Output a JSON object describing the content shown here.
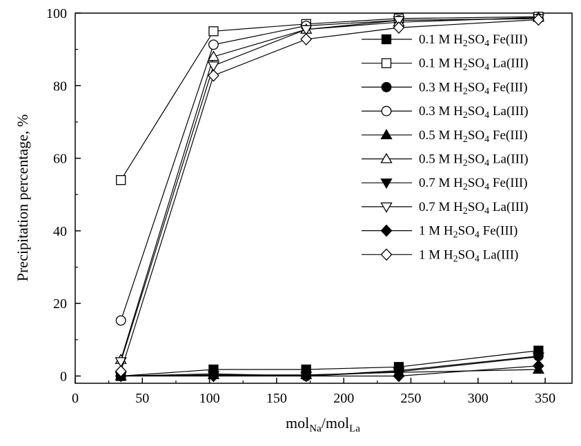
{
  "chart_data": {
    "type": "line",
    "xlabel": {
      "main": "mol",
      "sub1": "Na",
      "mid": "/mol",
      "sub2": "La"
    },
    "ylabel": "Precipitation percentage, %",
    "xlim": [
      0,
      370
    ],
    "ylim": [
      -2,
      100
    ],
    "xticks": [
      0,
      50,
      100,
      150,
      200,
      250,
      300,
      350
    ],
    "yticks": [
      0,
      20,
      40,
      60,
      80,
      100
    ],
    "x": [
      34,
      103,
      172,
      241,
      345
    ],
    "grid": false,
    "legend_position": "right",
    "series": [
      {
        "name": {
          "pre": "0.1 M H",
          "s1": "2",
          "mid": "SO",
          "s2": "4",
          "post": " Fe(III)"
        },
        "marker": "square",
        "filled": true,
        "values": [
          0,
          1.8,
          1.8,
          2.5,
          7
        ]
      },
      {
        "name": {
          "pre": "0.1 M H",
          "s1": "2",
          "mid": "SO",
          "s2": "4",
          "post": " La(III)"
        },
        "marker": "square",
        "filled": false,
        "values": [
          54,
          95,
          97,
          98.5,
          99
        ]
      },
      {
        "name": {
          "pre": "0.3 M H",
          "s1": "2",
          "mid": "SO",
          "s2": "4",
          "post": " Fe(III)"
        },
        "marker": "circle",
        "filled": true,
        "values": [
          0,
          0.6,
          0,
          1.5,
          5.5
        ]
      },
      {
        "name": {
          "pre": "0.3 M H",
          "s1": "2",
          "mid": "SO",
          "s2": "4",
          "post": " La(III)"
        },
        "marker": "circle",
        "filled": false,
        "values": [
          15.3,
          91.3,
          96.5,
          98,
          98.5
        ]
      },
      {
        "name": {
          "pre": "0.5 M H",
          "s1": "2",
          "mid": "SO",
          "s2": "4",
          "post": " Fe(III)"
        },
        "marker": "triangle-up",
        "filled": true,
        "values": [
          0,
          0.3,
          0.3,
          1,
          1.8
        ]
      },
      {
        "name": {
          "pre": "0.5 M H",
          "s1": "2",
          "mid": "SO",
          "s2": "4",
          "post": " La(III)"
        },
        "marker": "triangle-up",
        "filled": false,
        "values": [
          4.5,
          88,
          95.5,
          97.5,
          98.8
        ]
      },
      {
        "name": {
          "pre": "0.7 M H",
          "s1": "2",
          "mid": "SO",
          "s2": "4",
          "post": " Fe(III)"
        },
        "marker": "triangle-down",
        "filled": true,
        "values": [
          0,
          0.2,
          0,
          1.2,
          5.3
        ]
      },
      {
        "name": {
          "pre": "0.7 M H",
          "s1": "2",
          "mid": "SO",
          "s2": "4",
          "post": " La(III)"
        },
        "marker": "triangle-down",
        "filled": false,
        "values": [
          4,
          85.5,
          95.5,
          98,
          98.5
        ]
      },
      {
        "name": {
          "pre": "1 M H",
          "s1": "2",
          "mid": "SO",
          "s2": "4",
          "post": " Fe(III)"
        },
        "marker": "diamond",
        "filled": true,
        "values": [
          0,
          0,
          0,
          0,
          2.8
        ]
      },
      {
        "name": {
          "pre": "1 M H",
          "s1": "2",
          "mid": "SO",
          "s2": "4",
          "post": " La(III)"
        },
        "marker": "diamond",
        "filled": false,
        "values": [
          1.3,
          82.8,
          92.8,
          96,
          98.2
        ]
      }
    ]
  }
}
